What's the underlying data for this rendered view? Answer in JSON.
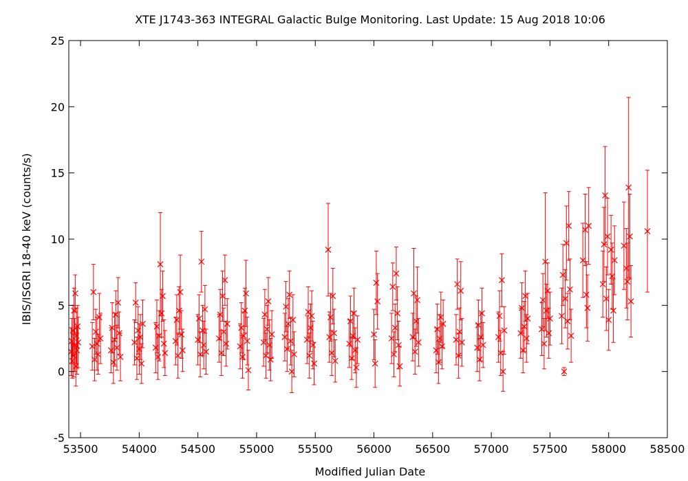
{
  "chart_data": {
    "type": "scatter",
    "title": "XTE J1743-363   INTEGRAL Galactic Bulge Monitoring.  Last Update: 15 Aug 2018 10:06",
    "xlabel": "Modified Julian Date",
    "ylabel": "IBIS/ISGRI 18-40 keV (counts/s)",
    "xlim": [
      53400,
      58500
    ],
    "ylim": [
      -5,
      25
    ],
    "xticks": [
      53500,
      54000,
      54500,
      55000,
      55500,
      56000,
      56500,
      57000,
      57500,
      58000,
      58500
    ],
    "yticks": [
      -5,
      0,
      5,
      10,
      15,
      20,
      25
    ],
    "grid": false,
    "marker": "x",
    "colors": {
      "series": "#ff0000",
      "axes": "#000000",
      "background": "#ffffff"
    },
    "points": [
      {
        "x": 53420,
        "y": 1.5,
        "err": 1.8
      },
      {
        "x": 53425,
        "y": 2.3,
        "err": 1.7
      },
      {
        "x": 53430,
        "y": 0.8,
        "err": 1.3
      },
      {
        "x": 53435,
        "y": 3.1,
        "err": 1.9
      },
      {
        "x": 53440,
        "y": 1.2,
        "err": 1.6
      },
      {
        "x": 53445,
        "y": 4.6,
        "err": 1.7
      },
      {
        "x": 53450,
        "y": 2.0,
        "err": 2.0
      },
      {
        "x": 53455,
        "y": 5.9,
        "err": 1.4
      },
      {
        "x": 53460,
        "y": 0.4,
        "err": 1.5
      },
      {
        "x": 53465,
        "y": 2.7,
        "err": 2.1
      },
      {
        "x": 53470,
        "y": 1.6,
        "err": 1.8
      },
      {
        "x": 53475,
        "y": 3.4,
        "err": 1.6
      },
      {
        "x": 53480,
        "y": 2.2,
        "err": 1.9
      },
      {
        "x": 53600,
        "y": 1.9,
        "err": 1.8
      },
      {
        "x": 53610,
        "y": 6.0,
        "err": 2.1
      },
      {
        "x": 53620,
        "y": 0.9,
        "err": 1.6
      },
      {
        "x": 53630,
        "y": 3.0,
        "err": 1.7
      },
      {
        "x": 53640,
        "y": 2.1,
        "err": 2.0
      },
      {
        "x": 53650,
        "y": 1.3,
        "err": 1.5
      },
      {
        "x": 53660,
        "y": 4.1,
        "err": 1.8
      },
      {
        "x": 53670,
        "y": 2.5,
        "err": 1.9
      },
      {
        "x": 53760,
        "y": 1.6,
        "err": 1.7
      },
      {
        "x": 53770,
        "y": 3.3,
        "err": 1.9
      },
      {
        "x": 53780,
        "y": 0.7,
        "err": 1.6
      },
      {
        "x": 53790,
        "y": 2.4,
        "err": 2.0
      },
      {
        "x": 53800,
        "y": 4.3,
        "err": 1.8
      },
      {
        "x": 53810,
        "y": 1.8,
        "err": 1.7
      },
      {
        "x": 53820,
        "y": 5.2,
        "err": 1.9
      },
      {
        "x": 53830,
        "y": 2.9,
        "err": 1.6
      },
      {
        "x": 53840,
        "y": 1.1,
        "err": 1.8
      },
      {
        "x": 53960,
        "y": 2.2,
        "err": 1.7
      },
      {
        "x": 53970,
        "y": 5.2,
        "err": 1.5
      },
      {
        "x": 53980,
        "y": 1.0,
        "err": 1.6
      },
      {
        "x": 53990,
        "y": 3.1,
        "err": 1.8
      },
      {
        "x": 54000,
        "y": 1.7,
        "err": 1.9
      },
      {
        "x": 54010,
        "y": 2.6,
        "err": 1.7
      },
      {
        "x": 54020,
        "y": 0.6,
        "err": 1.5
      },
      {
        "x": 54030,
        "y": 3.6,
        "err": 1.8
      },
      {
        "x": 54140,
        "y": 1.8,
        "err": 1.9
      },
      {
        "x": 54150,
        "y": 3.4,
        "err": 2.0
      },
      {
        "x": 54160,
        "y": 1.1,
        "err": 1.7
      },
      {
        "x": 54170,
        "y": 2.7,
        "err": 1.9
      },
      {
        "x": 54180,
        "y": 8.1,
        "err": 3.9
      },
      {
        "x": 54190,
        "y": 4.4,
        "err": 1.8
      },
      {
        "x": 54200,
        "y": 5.7,
        "err": 1.9
      },
      {
        "x": 54210,
        "y": 2.1,
        "err": 1.8
      },
      {
        "x": 54220,
        "y": 1.4,
        "err": 1.7
      },
      {
        "x": 54310,
        "y": 2.3,
        "err": 1.8
      },
      {
        "x": 54320,
        "y": 3.9,
        "err": 1.9
      },
      {
        "x": 54330,
        "y": 1.2,
        "err": 1.7
      },
      {
        "x": 54340,
        "y": 4.6,
        "err": 1.8
      },
      {
        "x": 54350,
        "y": 6.0,
        "err": 2.8
      },
      {
        "x": 54360,
        "y": 2.8,
        "err": 1.8
      },
      {
        "x": 54370,
        "y": 1.6,
        "err": 1.6
      },
      {
        "x": 54500,
        "y": 2.4,
        "err": 1.9
      },
      {
        "x": 54510,
        "y": 4.0,
        "err": 1.8
      },
      {
        "x": 54520,
        "y": 1.3,
        "err": 1.7
      },
      {
        "x": 54530,
        "y": 8.3,
        "err": 2.3
      },
      {
        "x": 54540,
        "y": 3.1,
        "err": 1.9
      },
      {
        "x": 54550,
        "y": 2.0,
        "err": 1.8
      },
      {
        "x": 54560,
        "y": 4.7,
        "err": 1.8
      },
      {
        "x": 54570,
        "y": 1.5,
        "err": 1.7
      },
      {
        "x": 54680,
        "y": 2.5,
        "err": 1.8
      },
      {
        "x": 54690,
        "y": 4.3,
        "err": 1.9
      },
      {
        "x": 54700,
        "y": 1.4,
        "err": 1.7
      },
      {
        "x": 54710,
        "y": 5.7,
        "err": 1.9
      },
      {
        "x": 54720,
        "y": 3.0,
        "err": 1.8
      },
      {
        "x": 54730,
        "y": 6.9,
        "err": 1.9
      },
      {
        "x": 54740,
        "y": 2.1,
        "err": 1.7
      },
      {
        "x": 54750,
        "y": 3.6,
        "err": 1.9
      },
      {
        "x": 54860,
        "y": 1.9,
        "err": 1.7
      },
      {
        "x": 54870,
        "y": 3.3,
        "err": 1.9
      },
      {
        "x": 54880,
        "y": 1.1,
        "err": 1.6
      },
      {
        "x": 54890,
        "y": 2.7,
        "err": 1.8
      },
      {
        "x": 54900,
        "y": 4.6,
        "err": 1.7
      },
      {
        "x": 54910,
        "y": 5.9,
        "err": 2.5
      },
      {
        "x": 54920,
        "y": 2.3,
        "err": 1.8
      },
      {
        "x": 54930,
        "y": 0.1,
        "err": 1.5
      },
      {
        "x": 55060,
        "y": 2.2,
        "err": 1.8
      },
      {
        "x": 55070,
        "y": 4.3,
        "err": 1.9
      },
      {
        "x": 55080,
        "y": 1.2,
        "err": 1.7
      },
      {
        "x": 55090,
        "y": 3.2,
        "err": 1.8
      },
      {
        "x": 55100,
        "y": 5.3,
        "err": 1.8
      },
      {
        "x": 55110,
        "y": 2.0,
        "err": 1.9
      },
      {
        "x": 55120,
        "y": 0.9,
        "err": 1.6
      },
      {
        "x": 55130,
        "y": 2.8,
        "err": 1.8
      },
      {
        "x": 55240,
        "y": 2.6,
        "err": 1.8
      },
      {
        "x": 55250,
        "y": 4.9,
        "err": 1.9
      },
      {
        "x": 55260,
        "y": 1.7,
        "err": 1.7
      },
      {
        "x": 55270,
        "y": 3.6,
        "err": 1.9
      },
      {
        "x": 55280,
        "y": 5.8,
        "err": 1.8
      },
      {
        "x": 55290,
        "y": 2.3,
        "err": 1.8
      },
      {
        "x": 55300,
        "y": 0.0,
        "err": 1.6
      },
      {
        "x": 55310,
        "y": 3.9,
        "err": 1.9
      },
      {
        "x": 55320,
        "y": 1.3,
        "err": 1.7
      },
      {
        "x": 55430,
        "y": 2.4,
        "err": 1.8
      },
      {
        "x": 55440,
        "y": 4.5,
        "err": 1.9
      },
      {
        "x": 55450,
        "y": 1.2,
        "err": 1.7
      },
      {
        "x": 55460,
        "y": 3.3,
        "err": 1.8
      },
      {
        "x": 55470,
        "y": 4.2,
        "err": 1.9
      },
      {
        "x": 55480,
        "y": 2.0,
        "err": 1.8
      },
      {
        "x": 55490,
        "y": 0.6,
        "err": 1.6
      },
      {
        "x": 55610,
        "y": 9.2,
        "err": 3.5
      },
      {
        "x": 55620,
        "y": 2.6,
        "err": 1.9
      },
      {
        "x": 55630,
        "y": 4.1,
        "err": 1.8
      },
      {
        "x": 55640,
        "y": 1.4,
        "err": 1.7
      },
      {
        "x": 55650,
        "y": 5.7,
        "err": 2.1
      },
      {
        "x": 55660,
        "y": 2.9,
        "err": 1.8
      },
      {
        "x": 55670,
        "y": 0.8,
        "err": 1.6
      },
      {
        "x": 55790,
        "y": 2.1,
        "err": 1.8
      },
      {
        "x": 55800,
        "y": 3.8,
        "err": 1.9
      },
      {
        "x": 55810,
        "y": 1.0,
        "err": 1.6
      },
      {
        "x": 55820,
        "y": 2.7,
        "err": 1.8
      },
      {
        "x": 55830,
        "y": 4.4,
        "err": 1.9
      },
      {
        "x": 55840,
        "y": 1.6,
        "err": 1.7
      },
      {
        "x": 55850,
        "y": 0.3,
        "err": 1.5
      },
      {
        "x": 55860,
        "y": 2.4,
        "err": 1.8
      },
      {
        "x": 56000,
        "y": 2.8,
        "err": 1.9
      },
      {
        "x": 56010,
        "y": 0.6,
        "err": 1.8
      },
      {
        "x": 56020,
        "y": 6.7,
        "err": 2.4
      },
      {
        "x": 56030,
        "y": 5.3,
        "err": 2.1
      },
      {
        "x": 56150,
        "y": 2.5,
        "err": 1.9
      },
      {
        "x": 56160,
        "y": 6.4,
        "err": 1.8
      },
      {
        "x": 56170,
        "y": 1.3,
        "err": 1.7
      },
      {
        "x": 56180,
        "y": 3.3,
        "err": 1.8
      },
      {
        "x": 56190,
        "y": 7.4,
        "err": 2.0
      },
      {
        "x": 56200,
        "y": 4.4,
        "err": 2.0
      },
      {
        "x": 56210,
        "y": 2.0,
        "err": 1.8
      },
      {
        "x": 56220,
        "y": 0.4,
        "err": 1.5
      },
      {
        "x": 56330,
        "y": 2.6,
        "err": 1.8
      },
      {
        "x": 56340,
        "y": 5.9,
        "err": 3.4
      },
      {
        "x": 56350,
        "y": 1.5,
        "err": 1.7
      },
      {
        "x": 56360,
        "y": 3.8,
        "err": 1.9
      },
      {
        "x": 56370,
        "y": 5.4,
        "err": 2.5
      },
      {
        "x": 56380,
        "y": 2.2,
        "err": 1.8
      },
      {
        "x": 56530,
        "y": 1.6,
        "err": 1.7
      },
      {
        "x": 56540,
        "y": 3.2,
        "err": 1.9
      },
      {
        "x": 56550,
        "y": 0.7,
        "err": 1.6
      },
      {
        "x": 56560,
        "y": 2.5,
        "err": 1.8
      },
      {
        "x": 56570,
        "y": 4.1,
        "err": 1.9
      },
      {
        "x": 56580,
        "y": 1.9,
        "err": 1.7
      },
      {
        "x": 56590,
        "y": 3.6,
        "err": 1.8
      },
      {
        "x": 56700,
        "y": 2.4,
        "err": 1.9
      },
      {
        "x": 56710,
        "y": 6.6,
        "err": 1.9
      },
      {
        "x": 56720,
        "y": 1.2,
        "err": 1.7
      },
      {
        "x": 56730,
        "y": 3.0,
        "err": 1.8
      },
      {
        "x": 56740,
        "y": 6.1,
        "err": 2.2
      },
      {
        "x": 56750,
        "y": 2.2,
        "err": 1.8
      },
      {
        "x": 56880,
        "y": 1.8,
        "err": 1.8
      },
      {
        "x": 56890,
        "y": 3.5,
        "err": 1.9
      },
      {
        "x": 56900,
        "y": 0.9,
        "err": 1.6
      },
      {
        "x": 56910,
        "y": 2.6,
        "err": 1.8
      },
      {
        "x": 56920,
        "y": 4.4,
        "err": 1.9
      },
      {
        "x": 56930,
        "y": 2.0,
        "err": 1.7
      },
      {
        "x": 57060,
        "y": 2.6,
        "err": 1.9
      },
      {
        "x": 57070,
        "y": 4.2,
        "err": 1.9
      },
      {
        "x": 57080,
        "y": 1.4,
        "err": 1.7
      },
      {
        "x": 57090,
        "y": 6.9,
        "err": 2.0
      },
      {
        "x": 57100,
        "y": 0.0,
        "err": 1.5
      },
      {
        "x": 57110,
        "y": 3.1,
        "err": 1.8
      },
      {
        "x": 57250,
        "y": 2.9,
        "err": 1.9
      },
      {
        "x": 57260,
        "y": 4.8,
        "err": 1.9
      },
      {
        "x": 57270,
        "y": 1.6,
        "err": 1.7
      },
      {
        "x": 57280,
        "y": 3.4,
        "err": 1.9
      },
      {
        "x": 57290,
        "y": 5.7,
        "err": 1.9
      },
      {
        "x": 57300,
        "y": 2.5,
        "err": 1.8
      },
      {
        "x": 57310,
        "y": 4.0,
        "err": 1.9
      },
      {
        "x": 57430,
        "y": 3.2,
        "err": 2.0
      },
      {
        "x": 57440,
        "y": 5.4,
        "err": 2.0
      },
      {
        "x": 57450,
        "y": 2.1,
        "err": 1.9
      },
      {
        "x": 57460,
        "y": 8.3,
        "err": 5.2
      },
      {
        "x": 57470,
        "y": 4.6,
        "err": 2.0
      },
      {
        "x": 57480,
        "y": 6.1,
        "err": 2.1
      },
      {
        "x": 57490,
        "y": 2.9,
        "err": 1.9
      },
      {
        "x": 57500,
        "y": 4.0,
        "err": 2.0
      },
      {
        "x": 57600,
        "y": 4.2,
        "err": 2.1
      },
      {
        "x": 57610,
        "y": 7.3,
        "err": 2.3
      },
      {
        "x": 57620,
        "y": 0.0,
        "err": 0.3
      },
      {
        "x": 57630,
        "y": 5.5,
        "err": 2.2
      },
      {
        "x": 57640,
        "y": 9.7,
        "err": 2.8
      },
      {
        "x": 57650,
        "y": 3.8,
        "err": 2.1
      },
      {
        "x": 57660,
        "y": 11.0,
        "err": 2.6
      },
      {
        "x": 57670,
        "y": 6.2,
        "err": 2.3
      },
      {
        "x": 57680,
        "y": 2.7,
        "err": 2.0
      },
      {
        "x": 57780,
        "y": 8.4,
        "err": 2.8
      },
      {
        "x": 57800,
        "y": 10.7,
        "err": 2.7
      },
      {
        "x": 57810,
        "y": 5.8,
        "err": 2.5
      },
      {
        "x": 57820,
        "y": 4.8,
        "err": 2.5
      },
      {
        "x": 57830,
        "y": 11.0,
        "err": 2.9
      },
      {
        "x": 57950,
        "y": 6.6,
        "err": 2.5
      },
      {
        "x": 57960,
        "y": 9.6,
        "err": 2.8
      },
      {
        "x": 57970,
        "y": 13.3,
        "err": 3.7
      },
      {
        "x": 57980,
        "y": 5.5,
        "err": 2.4
      },
      {
        "x": 57990,
        "y": 10.2,
        "err": 2.9
      },
      {
        "x": 58000,
        "y": 3.9,
        "err": 2.3
      },
      {
        "x": 58020,
        "y": 9.2,
        "err": 2.6
      },
      {
        "x": 58030,
        "y": 7.2,
        "err": 2.5
      },
      {
        "x": 58040,
        "y": 4.6,
        "err": 2.4
      },
      {
        "x": 58050,
        "y": 8.4,
        "err": 2.6
      },
      {
        "x": 58130,
        "y": 9.5,
        "err": 3.3
      },
      {
        "x": 58150,
        "y": 7.8,
        "err": 3.0
      },
      {
        "x": 58160,
        "y": 6.8,
        "err": 2.9
      },
      {
        "x": 58170,
        "y": 13.9,
        "err": 6.8
      },
      {
        "x": 58180,
        "y": 10.2,
        "err": 3.2
      },
      {
        "x": 58190,
        "y": 5.3,
        "err": 2.7
      },
      {
        "x": 58330,
        "y": 10.6,
        "err": 4.6
      }
    ]
  }
}
